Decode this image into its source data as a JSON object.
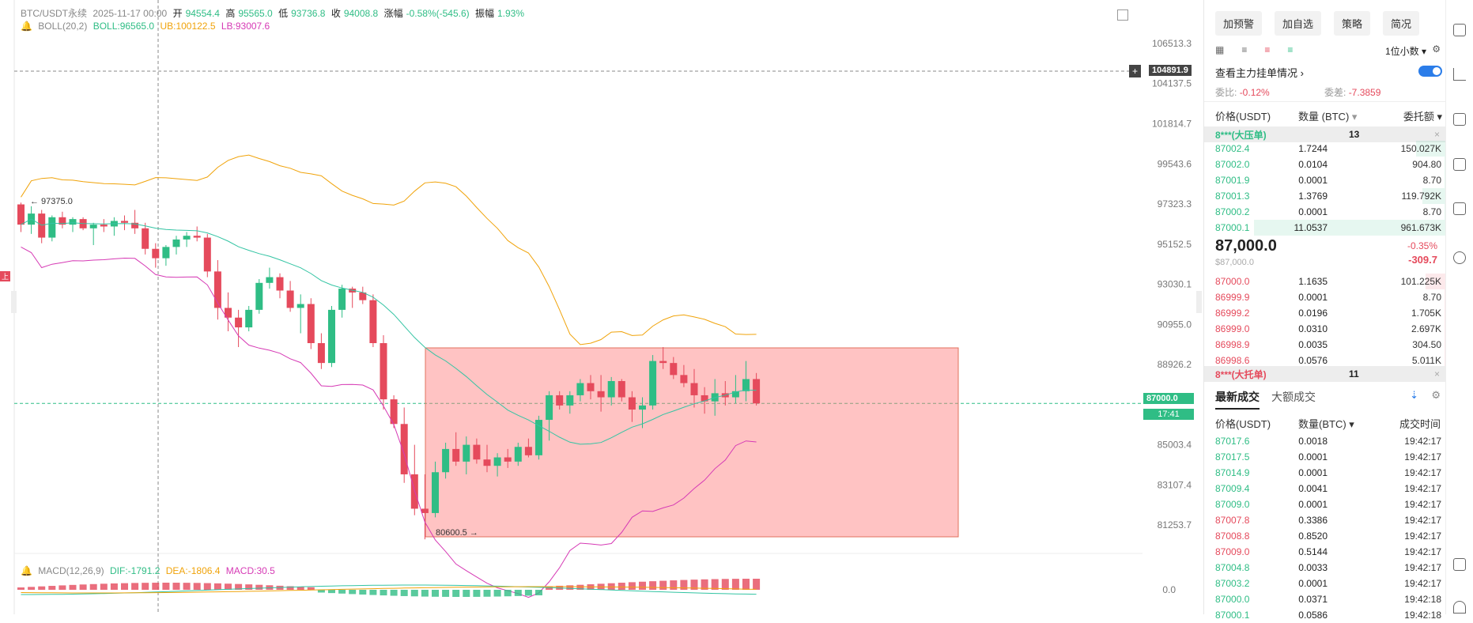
{
  "legend": {
    "symbol": "BTC/USDT永续",
    "date": "2025-11-17 00:00",
    "open_label": "开",
    "open": "94554.4",
    "high_label": "高",
    "high": "95565.0",
    "low_label": "低",
    "low": "93736.8",
    "close_label": "收",
    "close": "94008.8",
    "chg_label": "涨幅",
    "chg": "-0.58%(-545.6)",
    "amp_label": "振幅",
    "amp": "1.93%"
  },
  "boll": {
    "name": "BOLL(20,2)",
    "mid": "BOLL:96565.0",
    "ub": "UB:100122.5",
    "lb": "LB:93007.6"
  },
  "macd": {
    "name": "MACD(12,26,9)",
    "dif": "DIF:-1791.2",
    "dea": "DEA:-1806.4",
    "macd": "MACD:30.5"
  },
  "price_axis": [
    "106513.3",
    "104137.5",
    "101814.7",
    "99543.6",
    "97323.3",
    "95152.5",
    "93030.1",
    "90955.0",
    "88926.2",
    "85003.4",
    "83107.4",
    "81253.7"
  ],
  "macd_zero": "0.0",
  "crosshair_price": "104891.9",
  "crosshair_plus": "+",
  "last_price": "87000.0",
  "countdown": "17:41",
  "marker_high": "97375.0",
  "marker_low": "80600.5",
  "side_marker": "上",
  "chart_data": {
    "type": "candlestick",
    "y_axis_scale": "log",
    "candles": [
      [
        97300,
        97400,
        95800,
        96200
      ],
      [
        96200,
        97200,
        95700,
        96800
      ],
      [
        96800,
        97000,
        95200,
        95500
      ],
      [
        95500,
        96700,
        95300,
        96600
      ],
      [
        96600,
        96900,
        96000,
        96200
      ],
      [
        96200,
        96600,
        95800,
        96500
      ],
      [
        96500,
        96600,
        95900,
        96000
      ],
      [
        96000,
        96300,
        95100,
        96200
      ],
      [
        96200,
        96500,
        95800,
        96100
      ],
      [
        96100,
        96600,
        95600,
        96400
      ],
      [
        96400,
        96700,
        95900,
        96300
      ],
      [
        96300,
        97000,
        95700,
        96000
      ],
      [
        96000,
        96300,
        94600,
        94900
      ],
      [
        94900,
        95200,
        93900,
        94400
      ],
      [
        94400,
        95100,
        94000,
        95000
      ],
      [
        95000,
        95600,
        94600,
        95400
      ],
      [
        95400,
        95800,
        95000,
        95600
      ],
      [
        95600,
        96100,
        95300,
        95500
      ],
      [
        95500,
        95700,
        93400,
        93700
      ],
      [
        93700,
        94300,
        91200,
        91800
      ],
      [
        91800,
        92600,
        90600,
        91300
      ],
      [
        91300,
        91700,
        89800,
        90800
      ],
      [
        90800,
        91900,
        90600,
        91700
      ],
      [
        91700,
        93300,
        91500,
        93100
      ],
      [
        93100,
        93900,
        92800,
        93400
      ],
      [
        93400,
        93600,
        92300,
        92700
      ],
      [
        92700,
        93200,
        91600,
        91800
      ],
      [
        91800,
        92500,
        90500,
        92000
      ],
      [
        92000,
        92300,
        89700,
        90000
      ],
      [
        90000,
        90500,
        88700,
        89000
      ],
      [
        89000,
        91900,
        88800,
        91700
      ],
      [
        91700,
        93000,
        91300,
        92800
      ],
      [
        92800,
        92900,
        91800,
        92600
      ],
      [
        92600,
        92900,
        92000,
        92200
      ],
      [
        92200,
        92500,
        89800,
        90000
      ],
      [
        90000,
        90400,
        86700,
        87200
      ],
      [
        87200,
        87400,
        85800,
        86000
      ],
      [
        86000,
        86800,
        83200,
        83600
      ],
      [
        83600,
        85000,
        81700,
        82000
      ],
      [
        82000,
        83600,
        80600,
        81800
      ],
      [
        81800,
        84200,
        81600,
        83700
      ],
      [
        83700,
        85100,
        83400,
        84800
      ],
      [
        84800,
        85600,
        84000,
        84200
      ],
      [
        84200,
        85400,
        83600,
        85000
      ],
      [
        85000,
        85300,
        84100,
        84300
      ],
      [
        84300,
        85000,
        83700,
        84000
      ],
      [
        84000,
        84600,
        83500,
        84400
      ],
      [
        84400,
        84800,
        83900,
        84200
      ],
      [
        84200,
        85100,
        84000,
        84900
      ],
      [
        84900,
        85300,
        84400,
        84500
      ],
      [
        84500,
        86400,
        84300,
        86200
      ],
      [
        86200,
        87600,
        85200,
        87400
      ],
      [
        87400,
        87600,
        86700,
        86900
      ],
      [
        86900,
        87600,
        86500,
        87400
      ],
      [
        87400,
        88200,
        87100,
        88000
      ],
      [
        88000,
        88400,
        87200,
        87600
      ],
      [
        87600,
        88400,
        86600,
        87300
      ],
      [
        87300,
        88300,
        86900,
        88100
      ],
      [
        88100,
        88200,
        87100,
        87300
      ],
      [
        87300,
        87600,
        86100,
        86700
      ],
      [
        86700,
        87300,
        85800,
        86900
      ],
      [
        86900,
        89400,
        86700,
        89100
      ],
      [
        89100,
        89800,
        88700,
        89000
      ],
      [
        89000,
        89300,
        88200,
        88400
      ],
      [
        88400,
        88900,
        87800,
        88000
      ],
      [
        88000,
        88700,
        86800,
        87400
      ],
      [
        87400,
        87800,
        86500,
        87100
      ],
      [
        87100,
        88200,
        86400,
        87500
      ],
      [
        87500,
        88100,
        86900,
        87300
      ],
      [
        87300,
        88400,
        87000,
        87600
      ],
      [
        87600,
        89100,
        87100,
        88200
      ],
      [
        88200,
        88500,
        86900,
        87000
      ]
    ]
  },
  "orderbook": {
    "buttons": [
      "加预警",
      "加自选",
      "策略",
      "简况"
    ],
    "decimals": "1位小数",
    "watch_label": "查看主力挂单情况",
    "ratio_label": "委比:",
    "ratio": "-0.12%",
    "diff_label": "委差:",
    "diff": "-7.3859",
    "col_price": "价格(USDT)",
    "col_qty": "数量 (BTC)",
    "col_total": "委托额",
    "big_ask_label": "8***(大压单)",
    "big_ask_count": "13",
    "asks": [
      {
        "p": "87002.4",
        "q": "1.7244",
        "t": "150.027K"
      },
      {
        "p": "87002.0",
        "q": "0.0104",
        "t": "904.80"
      },
      {
        "p": "87001.9",
        "q": "0.0001",
        "t": "8.70"
      },
      {
        "p": "87001.3",
        "q": "1.3769",
        "t": "119.792K"
      },
      {
        "p": "87000.2",
        "q": "0.0001",
        "t": "8.70"
      },
      {
        "p": "87000.1",
        "q": "11.0537",
        "t": "961.673K"
      }
    ],
    "mid_price": "87,000.0",
    "mid_sub": "$87,000.0",
    "mid_pct": "-0.35%",
    "mid_chg": "-309.7",
    "bids": [
      {
        "p": "87000.0",
        "q": "1.1635",
        "t": "101.225K"
      },
      {
        "p": "86999.9",
        "q": "0.0001",
        "t": "8.70"
      },
      {
        "p": "86999.2",
        "q": "0.0196",
        "t": "1.705K"
      },
      {
        "p": "86999.0",
        "q": "0.0310",
        "t": "2.697K"
      },
      {
        "p": "86998.9",
        "q": "0.0035",
        "t": "304.50"
      },
      {
        "p": "86998.6",
        "q": "0.0576",
        "t": "5.011K"
      }
    ],
    "big_bid_label": "8***(大托单)",
    "big_bid_count": "11",
    "trades_tab": "最新成交",
    "big_trades_tab": "大额成交",
    "t_price": "价格(USDT)",
    "t_qty": "数量(BTC)",
    "t_time": "成交时间",
    "trades": [
      {
        "p": "87017.6",
        "q": "0.0018",
        "t": "19:42:17",
        "side": "buy"
      },
      {
        "p": "87017.5",
        "q": "0.0001",
        "t": "19:42:17",
        "side": "buy"
      },
      {
        "p": "87014.9",
        "q": "0.0001",
        "t": "19:42:17",
        "side": "buy"
      },
      {
        "p": "87009.4",
        "q": "0.0041",
        "t": "19:42:17",
        "side": "buy"
      },
      {
        "p": "87009.0",
        "q": "0.0001",
        "t": "19:42:17",
        "side": "buy"
      },
      {
        "p": "87007.8",
        "q": "0.3386",
        "t": "19:42:17",
        "side": "sell"
      },
      {
        "p": "87008.8",
        "q": "0.8520",
        "t": "19:42:17",
        "side": "sell"
      },
      {
        "p": "87009.0",
        "q": "0.5144",
        "t": "19:42:17",
        "side": "sell"
      },
      {
        "p": "87004.8",
        "q": "0.0033",
        "t": "19:42:17",
        "side": "buy"
      },
      {
        "p": "87003.2",
        "q": "0.0001",
        "t": "19:42:17",
        "side": "buy"
      },
      {
        "p": "87000.0",
        "q": "0.0371",
        "t": "19:42:18",
        "side": "buy"
      },
      {
        "p": "87000.1",
        "q": "0.0586",
        "t": "19:42:18",
        "side": "buy"
      }
    ]
  },
  "colors": {
    "up": "#2fbd85",
    "down": "#e54a5c",
    "ub": "#f0a30a",
    "mid": "#33c4a3",
    "lb": "#d63ab5",
    "box": "#ff7a7a"
  }
}
